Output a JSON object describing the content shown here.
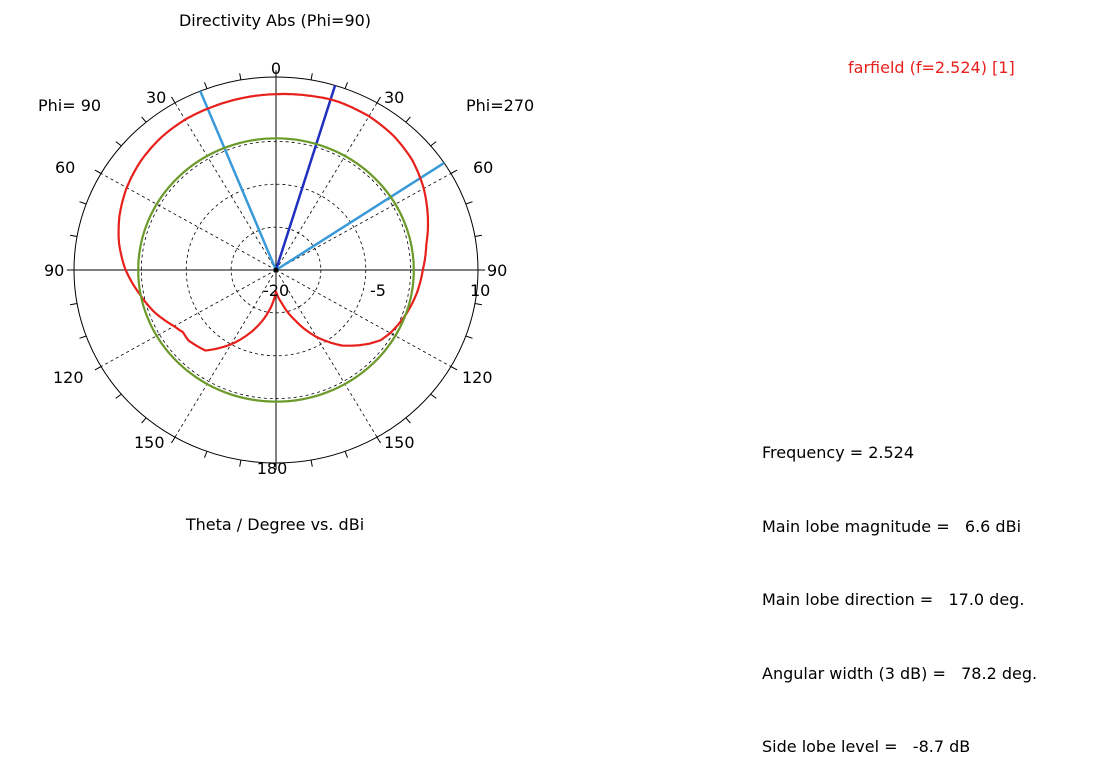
{
  "chart_data": {
    "type": "polar",
    "title": "Directivity Abs (Phi=90)",
    "xlabel": "Theta / Degree vs. dBi",
    "phi_left_label": "Phi= 90",
    "phi_right_label": "Phi=270",
    "angle_labels": {
      "top": "0",
      "upper_left": "30",
      "upper_right": "30",
      "mid_upper_left": "60",
      "mid_upper_right": "60",
      "left": "90",
      "right": "90",
      "lower_left": "120",
      "lower_right": "120",
      "bottom_left": "150",
      "bottom_right": "150",
      "bottom": "180"
    },
    "radial_tick_labels": [
      "-20",
      "-5",
      "10"
    ],
    "radial_range_db": [
      -35,
      10
    ],
    "grid": true,
    "legend": "top-right",
    "series": [
      {
        "name": "farfield (f=2.524) [1]",
        "color": "#e8201c",
        "theta_deg": [
          0,
          10,
          17,
          20,
          30,
          40,
          50,
          60,
          70,
          80,
          90,
          100,
          110,
          120,
          125,
          130,
          140,
          150,
          160,
          170,
          180,
          190,
          200,
          210,
          220,
          230,
          235,
          240,
          250,
          260,
          270,
          280,
          290,
          300,
          310,
          320,
          330,
          340,
          350
        ],
        "gain_dbi": [
          6.0,
          6.3,
          6.6,
          6.6,
          6.4,
          5.8,
          4.7,
          3.0,
          1.0,
          -1.0,
          -2.3,
          -3.2,
          -4.3,
          -5.6,
          -6.5,
          -8.2,
          -12.0,
          -17.0,
          -22.5,
          -27.0,
          -30.0,
          -25.0,
          -20.0,
          -15.0,
          -10.5,
          -9.5,
          -9.7,
          -8.8,
          -6.2,
          -4.0,
          -1.5,
          0.5,
          2.1,
          3.4,
          4.4,
          5.1,
          5.5,
          5.6,
          5.8
        ]
      },
      {
        "name": "reference circle",
        "color": "#6b9a2a",
        "constant_gain_dbi": -4.3
      }
    ],
    "markers": [
      {
        "name": "main lobe direction",
        "color": "#1f2fbf",
        "theta_deg": 17.0
      },
      {
        "name": "3 dB beamwidth boundary",
        "color": "#3a9ad9",
        "theta_deg": 56.3
      },
      {
        "name": "3 dB beamwidth boundary",
        "color": "#3a9ad9",
        "theta_deg": 338
      }
    ]
  },
  "legend": {
    "text": "farfield (f=2.524) [1]",
    "color": "#e8201c"
  },
  "stats": [
    "Frequency = 2.524",
    "Main lobe magnitude =   6.6 dBi",
    "Main lobe direction =   17.0 deg.",
    "Angular width (3 dB) =   78.2 deg.",
    "Side lobe level =   -8.7 dB"
  ]
}
